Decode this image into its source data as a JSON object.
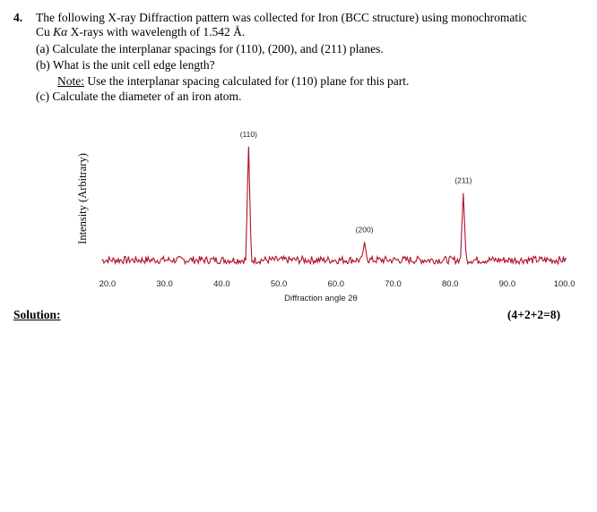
{
  "question": {
    "number": "4.",
    "line1": "The following X-ray Diffraction pattern was collected for Iron (BCC structure) using monochromatic",
    "line2_pre": "Cu ",
    "line2_italic": "Kα",
    "line2_post": " X-rays with wavelength of 1.542 Å.",
    "part_a": "(a)  Calculate the interplanar spacings for (110), (200), and (211) planes.",
    "part_b": "(b)  What is the unit cell edge length?",
    "note_label": "Note:",
    "note_text": " Use the interplanar spacing calculated for (110) plane for this part.",
    "part_c": "(c)  Calculate the diameter of an iron atom."
  },
  "solution_label": "Solution:",
  "marks": "(4+2+2=8)",
  "chart_data": {
    "type": "line",
    "xlabel": "Diffraction angle 2θ",
    "ylabel": "Intensity (Arbitrary)",
    "xlim": [
      17.5,
      101
    ],
    "ylim": [
      0,
      100
    ],
    "x_ticks": [
      "20.0",
      "30.0",
      "40.0",
      "50.0",
      "60.0",
      "70.0",
      "80.0",
      "90.0",
      "100.0"
    ],
    "baseline": 8,
    "peaks": [
      {
        "label": "(110)",
        "x": 44.7,
        "y": 96
      },
      {
        "label": "(200)",
        "x": 65.0,
        "y": 22
      },
      {
        "label": "(211)",
        "x": 82.3,
        "y": 60
      }
    ],
    "line_color": "#b0102a"
  }
}
